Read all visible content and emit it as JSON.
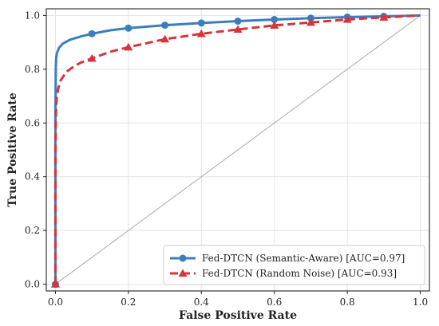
{
  "chart_data": {
    "type": "line",
    "title": "",
    "xlabel": "False Positive Rate",
    "ylabel": "True Positive Rate",
    "xlim": [
      0,
      1
    ],
    "ylim": [
      0,
      1
    ],
    "xticks": [
      0.0,
      0.2,
      0.4,
      0.6,
      0.8,
      1.0
    ],
    "yticks": [
      0.0,
      0.2,
      0.4,
      0.6,
      0.8,
      1.0
    ],
    "xtick_labels": [
      "0.0",
      "0.2",
      "0.4",
      "0.6",
      "0.8",
      "1.0"
    ],
    "ytick_labels": [
      "0.0",
      "0.2",
      "0.4",
      "0.6",
      "0.8",
      "1.0"
    ],
    "grid": true,
    "legend_position": "bottom-right",
    "series": [
      {
        "name": "Fed-DTCN (Semantic-Aware) [AUC=0.97]",
        "color": "#3a7ebf",
        "line_style": "solid",
        "marker": "circle",
        "x": [
          0.0,
          0.0,
          0.001,
          0.002,
          0.004,
          0.01,
          0.02,
          0.04,
          0.07,
          0.1,
          0.15,
          0.2,
          0.3,
          0.4,
          0.5,
          0.6,
          0.7,
          0.8,
          0.9,
          1.0
        ],
        "y": [
          0.0,
          0.6,
          0.8,
          0.84,
          0.86,
          0.88,
          0.895,
          0.91,
          0.922,
          0.932,
          0.945,
          0.953,
          0.964,
          0.972,
          0.979,
          0.985,
          0.99,
          0.994,
          0.997,
          1.0
        ],
        "marker_points": [
          {
            "x": 0.0,
            "y": 0.0
          },
          {
            "x": 0.1,
            "y": 0.932
          },
          {
            "x": 0.2,
            "y": 0.953
          },
          {
            "x": 0.3,
            "y": 0.964
          },
          {
            "x": 0.4,
            "y": 0.972
          },
          {
            "x": 0.5,
            "y": 0.979
          },
          {
            "x": 0.6,
            "y": 0.985
          },
          {
            "x": 0.7,
            "y": 0.99
          },
          {
            "x": 0.8,
            "y": 0.994
          },
          {
            "x": 0.9,
            "y": 0.997
          }
        ]
      },
      {
        "name": "Fed-DTCN (Random Noise) [AUC=0.93]",
        "color": "#d8333a",
        "line_style": "dashed",
        "marker": "triangle",
        "x": [
          0.0,
          0.0,
          0.001,
          0.002,
          0.004,
          0.008,
          0.015,
          0.03,
          0.05,
          0.07,
          0.1,
          0.15,
          0.2,
          0.3,
          0.4,
          0.5,
          0.6,
          0.7,
          0.8,
          0.9,
          1.0
        ],
        "y": [
          0.0,
          0.45,
          0.6,
          0.66,
          0.7,
          0.73,
          0.76,
          0.79,
          0.81,
          0.825,
          0.84,
          0.865,
          0.882,
          0.912,
          0.932,
          0.948,
          0.963,
          0.974,
          0.985,
          0.993,
          1.0
        ],
        "marker_points": [
          {
            "x": 0.0,
            "y": 0.0
          },
          {
            "x": 0.1,
            "y": 0.84
          },
          {
            "x": 0.2,
            "y": 0.882
          },
          {
            "x": 0.3,
            "y": 0.912
          },
          {
            "x": 0.4,
            "y": 0.932
          },
          {
            "x": 0.5,
            "y": 0.948
          },
          {
            "x": 0.6,
            "y": 0.963
          },
          {
            "x": 0.7,
            "y": 0.974
          },
          {
            "x": 0.8,
            "y": 0.985
          },
          {
            "x": 0.9,
            "y": 0.993
          }
        ]
      }
    ],
    "reference_line": {
      "x": [
        0,
        1
      ],
      "y": [
        0,
        1
      ],
      "color": "#aaaaaa"
    }
  }
}
